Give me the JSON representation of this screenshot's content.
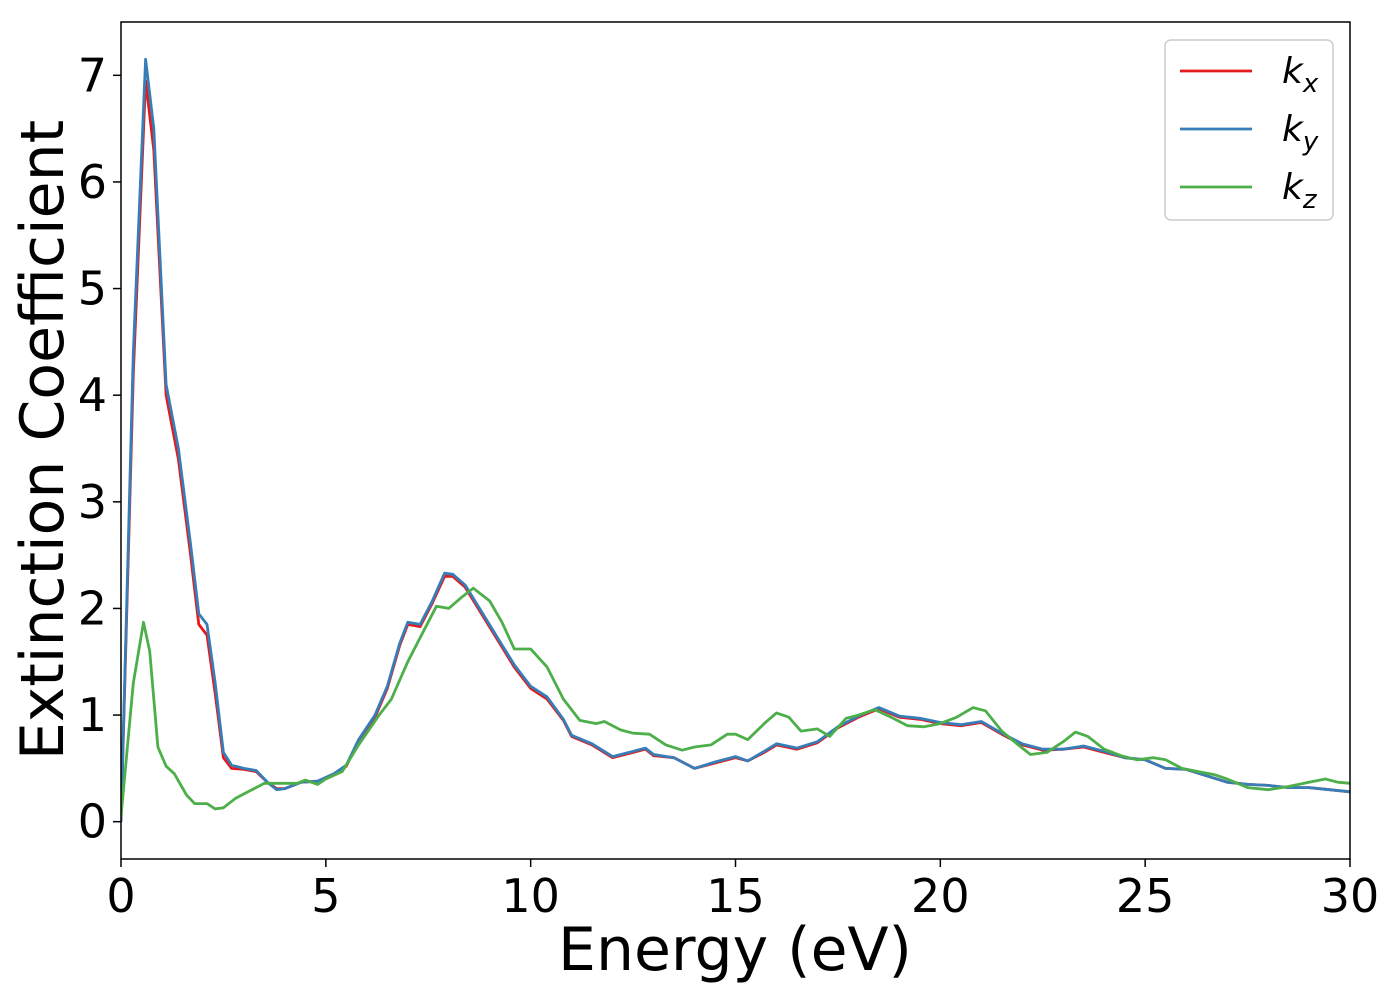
{
  "chart_data": {
    "type": "line",
    "xlabel": "Energy (eV)",
    "ylabel": "Extinction Coefficient",
    "xlim": [
      0,
      30
    ],
    "ylim": [
      -0.35,
      7.5
    ],
    "xticks": [
      0,
      5,
      10,
      15,
      20,
      25,
      30
    ],
    "yticks": [
      0,
      1,
      2,
      3,
      4,
      5,
      6,
      7
    ],
    "grid": false,
    "legend_position": "top-right",
    "series": [
      {
        "name": "k",
        "subscript": "x",
        "color": "#e41a1c",
        "points": [
          [
            0,
            0
          ],
          [
            0.3,
            4.2
          ],
          [
            0.6,
            6.95
          ],
          [
            0.8,
            6.3
          ],
          [
            1.1,
            4.0
          ],
          [
            1.4,
            3.4
          ],
          [
            1.7,
            2.5
          ],
          [
            1.9,
            1.85
          ],
          [
            2.1,
            1.75
          ],
          [
            2.3,
            1.2
          ],
          [
            2.5,
            0.6
          ],
          [
            2.7,
            0.5
          ],
          [
            3.0,
            0.49
          ],
          [
            3.3,
            0.47
          ],
          [
            3.6,
            0.36
          ],
          [
            3.8,
            0.31
          ],
          [
            4.0,
            0.31
          ],
          [
            4.4,
            0.37
          ],
          [
            4.8,
            0.38
          ],
          [
            5.2,
            0.44
          ],
          [
            5.5,
            0.52
          ],
          [
            5.8,
            0.76
          ],
          [
            6.2,
            0.98
          ],
          [
            6.5,
            1.25
          ],
          [
            6.8,
            1.65
          ],
          [
            7.0,
            1.85
          ],
          [
            7.3,
            1.83
          ],
          [
            7.6,
            2.05
          ],
          [
            7.9,
            2.3
          ],
          [
            8.1,
            2.3
          ],
          [
            8.4,
            2.2
          ],
          [
            8.8,
            1.95
          ],
          [
            9.2,
            1.7
          ],
          [
            9.6,
            1.45
          ],
          [
            10.0,
            1.25
          ],
          [
            10.4,
            1.15
          ],
          [
            10.8,
            0.95
          ],
          [
            11.0,
            0.8
          ],
          [
            11.5,
            0.72
          ],
          [
            12.0,
            0.6
          ],
          [
            12.5,
            0.65
          ],
          [
            12.8,
            0.68
          ],
          [
            13.0,
            0.62
          ],
          [
            13.5,
            0.6
          ],
          [
            14.0,
            0.5
          ],
          [
            14.5,
            0.55
          ],
          [
            15.0,
            0.6
          ],
          [
            15.3,
            0.57
          ],
          [
            15.7,
            0.65
          ],
          [
            16.0,
            0.72
          ],
          [
            16.5,
            0.68
          ],
          [
            17.0,
            0.74
          ],
          [
            17.5,
            0.88
          ],
          [
            18.0,
            0.98
          ],
          [
            18.5,
            1.06
          ],
          [
            19.0,
            0.98
          ],
          [
            19.5,
            0.96
          ],
          [
            20.0,
            0.92
          ],
          [
            20.5,
            0.9
          ],
          [
            21.0,
            0.93
          ],
          [
            21.5,
            0.82
          ],
          [
            22.0,
            0.72
          ],
          [
            22.5,
            0.67
          ],
          [
            23.0,
            0.68
          ],
          [
            23.5,
            0.7
          ],
          [
            24.0,
            0.65
          ],
          [
            24.5,
            0.6
          ],
          [
            25.0,
            0.58
          ],
          [
            25.5,
            0.5
          ],
          [
            26.0,
            0.49
          ],
          [
            26.5,
            0.43
          ],
          [
            27.0,
            0.37
          ],
          [
            27.5,
            0.35
          ],
          [
            28.0,
            0.34
          ],
          [
            28.5,
            0.32
          ],
          [
            29.0,
            0.32
          ],
          [
            29.5,
            0.3
          ],
          [
            30.0,
            0.28
          ]
        ]
      },
      {
        "name": "k",
        "subscript": "y",
        "color": "#377eb8",
        "points": [
          [
            0,
            0
          ],
          [
            0.3,
            4.4
          ],
          [
            0.6,
            7.15
          ],
          [
            0.8,
            6.5
          ],
          [
            1.1,
            4.1
          ],
          [
            1.4,
            3.5
          ],
          [
            1.7,
            2.6
          ],
          [
            1.9,
            1.95
          ],
          [
            2.1,
            1.85
          ],
          [
            2.3,
            1.3
          ],
          [
            2.5,
            0.65
          ],
          [
            2.7,
            0.53
          ],
          [
            3.0,
            0.5
          ],
          [
            3.3,
            0.48
          ],
          [
            3.6,
            0.36
          ],
          [
            3.8,
            0.3
          ],
          [
            4.0,
            0.31
          ],
          [
            4.4,
            0.37
          ],
          [
            4.8,
            0.38
          ],
          [
            5.2,
            0.45
          ],
          [
            5.5,
            0.53
          ],
          [
            5.8,
            0.77
          ],
          [
            6.2,
            1.0
          ],
          [
            6.5,
            1.27
          ],
          [
            6.8,
            1.67
          ],
          [
            7.0,
            1.87
          ],
          [
            7.3,
            1.85
          ],
          [
            7.6,
            2.07
          ],
          [
            7.9,
            2.33
          ],
          [
            8.1,
            2.32
          ],
          [
            8.4,
            2.22
          ],
          [
            8.8,
            1.97
          ],
          [
            9.2,
            1.72
          ],
          [
            9.6,
            1.47
          ],
          [
            10.0,
            1.27
          ],
          [
            10.4,
            1.17
          ],
          [
            10.8,
            0.96
          ],
          [
            11.0,
            0.81
          ],
          [
            11.5,
            0.73
          ],
          [
            12.0,
            0.61
          ],
          [
            12.5,
            0.66
          ],
          [
            12.8,
            0.69
          ],
          [
            13.0,
            0.63
          ],
          [
            13.5,
            0.6
          ],
          [
            14.0,
            0.5
          ],
          [
            14.5,
            0.56
          ],
          [
            15.0,
            0.61
          ],
          [
            15.3,
            0.57
          ],
          [
            15.7,
            0.66
          ],
          [
            16.0,
            0.73
          ],
          [
            16.5,
            0.69
          ],
          [
            17.0,
            0.75
          ],
          [
            17.5,
            0.89
          ],
          [
            18.0,
            0.99
          ],
          [
            18.5,
            1.07
          ],
          [
            19.0,
            0.99
          ],
          [
            19.5,
            0.97
          ],
          [
            20.0,
            0.93
          ],
          [
            20.5,
            0.91
          ],
          [
            21.0,
            0.94
          ],
          [
            21.5,
            0.83
          ],
          [
            22.0,
            0.73
          ],
          [
            22.5,
            0.68
          ],
          [
            23.0,
            0.68
          ],
          [
            23.5,
            0.71
          ],
          [
            24.0,
            0.66
          ],
          [
            24.5,
            0.6
          ],
          [
            25.0,
            0.58
          ],
          [
            25.5,
            0.5
          ],
          [
            26.0,
            0.49
          ],
          [
            26.5,
            0.43
          ],
          [
            27.0,
            0.37
          ],
          [
            27.5,
            0.35
          ],
          [
            28.0,
            0.34
          ],
          [
            28.5,
            0.32
          ],
          [
            29.0,
            0.32
          ],
          [
            29.5,
            0.3
          ],
          [
            30.0,
            0.28
          ]
        ]
      },
      {
        "name": "k",
        "subscript": "z",
        "color": "#4daf4a",
        "points": [
          [
            0,
            0.05
          ],
          [
            0.3,
            1.3
          ],
          [
            0.55,
            1.87
          ],
          [
            0.7,
            1.6
          ],
          [
            0.9,
            0.7
          ],
          [
            1.1,
            0.52
          ],
          [
            1.3,
            0.45
          ],
          [
            1.6,
            0.25
          ],
          [
            1.8,
            0.17
          ],
          [
            2.1,
            0.17
          ],
          [
            2.3,
            0.12
          ],
          [
            2.5,
            0.13
          ],
          [
            2.8,
            0.22
          ],
          [
            3.1,
            0.28
          ],
          [
            3.5,
            0.36
          ],
          [
            3.9,
            0.36
          ],
          [
            4.3,
            0.36
          ],
          [
            4.5,
            0.39
          ],
          [
            4.8,
            0.35
          ],
          [
            5.0,
            0.4
          ],
          [
            5.4,
            0.47
          ],
          [
            5.8,
            0.72
          ],
          [
            6.3,
            1.0
          ],
          [
            6.6,
            1.15
          ],
          [
            7.0,
            1.5
          ],
          [
            7.4,
            1.8
          ],
          [
            7.7,
            2.02
          ],
          [
            8.0,
            2.0
          ],
          [
            8.3,
            2.1
          ],
          [
            8.6,
            2.19
          ],
          [
            9.0,
            2.07
          ],
          [
            9.3,
            1.87
          ],
          [
            9.6,
            1.62
          ],
          [
            10.0,
            1.62
          ],
          [
            10.4,
            1.45
          ],
          [
            10.8,
            1.15
          ],
          [
            11.2,
            0.95
          ],
          [
            11.6,
            0.92
          ],
          [
            11.8,
            0.94
          ],
          [
            12.2,
            0.86
          ],
          [
            12.5,
            0.83
          ],
          [
            12.9,
            0.82
          ],
          [
            13.3,
            0.72
          ],
          [
            13.7,
            0.67
          ],
          [
            14.0,
            0.7
          ],
          [
            14.4,
            0.72
          ],
          [
            14.8,
            0.82
          ],
          [
            15.0,
            0.82
          ],
          [
            15.3,
            0.77
          ],
          [
            15.7,
            0.92
          ],
          [
            16.0,
            1.02
          ],
          [
            16.3,
            0.98
          ],
          [
            16.6,
            0.85
          ],
          [
            17.0,
            0.87
          ],
          [
            17.3,
            0.8
          ],
          [
            17.7,
            0.97
          ],
          [
            18.0,
            1.0
          ],
          [
            18.4,
            1.05
          ],
          [
            18.8,
            0.98
          ],
          [
            19.2,
            0.9
          ],
          [
            19.6,
            0.89
          ],
          [
            20.0,
            0.92
          ],
          [
            20.4,
            0.98
          ],
          [
            20.8,
            1.07
          ],
          [
            21.1,
            1.04
          ],
          [
            21.5,
            0.85
          ],
          [
            21.9,
            0.72
          ],
          [
            22.2,
            0.63
          ],
          [
            22.6,
            0.65
          ],
          [
            23.0,
            0.75
          ],
          [
            23.3,
            0.84
          ],
          [
            23.6,
            0.8
          ],
          [
            24.0,
            0.68
          ],
          [
            24.4,
            0.62
          ],
          [
            24.8,
            0.58
          ],
          [
            25.2,
            0.6
          ],
          [
            25.5,
            0.58
          ],
          [
            25.9,
            0.5
          ],
          [
            26.3,
            0.47
          ],
          [
            26.7,
            0.44
          ],
          [
            27.0,
            0.4
          ],
          [
            27.5,
            0.32
          ],
          [
            28.0,
            0.3
          ],
          [
            28.5,
            0.33
          ],
          [
            29.0,
            0.37
          ],
          [
            29.4,
            0.4
          ],
          [
            29.7,
            0.37
          ],
          [
            30.0,
            0.36
          ]
        ]
      }
    ]
  }
}
